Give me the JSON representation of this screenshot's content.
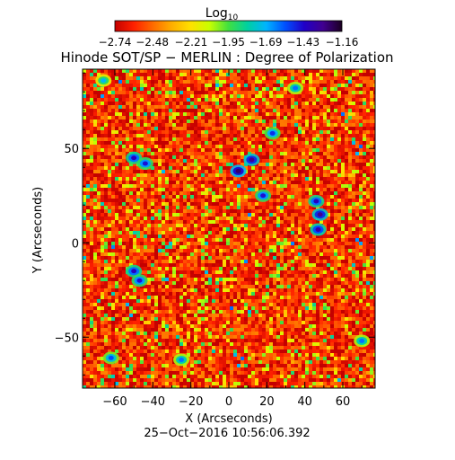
{
  "chart_data": {
    "type": "heatmap",
    "title": "Hinode SOT/SP − MERLIN : Degree of Polarization",
    "xlabel": "X (Arcseconds)",
    "ylabel": "Y (Arcseconds)",
    "timestamp": "25−Oct−2016 10:56:06.392",
    "xlim": [
      -77,
      77
    ],
    "ylim": [
      -77,
      92
    ],
    "x_ticks": [
      -60,
      -40,
      -20,
      0,
      20,
      40,
      60
    ],
    "x_tick_labels": [
      "−60",
      "−40",
      "−20",
      "0",
      "20",
      "40",
      "60"
    ],
    "y_ticks": [
      -50,
      0,
      50
    ],
    "y_tick_labels": [
      "−50",
      "0",
      "50"
    ],
    "colorbar": {
      "title": "Log",
      "title_subscript": "10",
      "min": -2.74,
      "max": -1.16,
      "tick_values": [
        -2.74,
        -2.48,
        -2.21,
        -1.95,
        -1.69,
        -1.43,
        -1.16
      ],
      "tick_labels": [
        "−2.74",
        "−2.48",
        "−2.21",
        "−1.95",
        "−1.69",
        "−1.43",
        "−1.16"
      ],
      "colors": [
        "#c40000",
        "#ff2000",
        "#ff6a00",
        "#ffae00",
        "#ffe000",
        "#c8ff00",
        "#40e040",
        "#00d0a0",
        "#00b4ff",
        "#0050ff",
        "#2000c8",
        "#400090",
        "#1a0020"
      ]
    },
    "background_level": -2.6,
    "patches": [
      {
        "x": 5,
        "y": 38,
        "level": -1.25
      },
      {
        "x": 12,
        "y": 44,
        "level": -1.3
      },
      {
        "x": 48,
        "y": 15,
        "level": -1.3
      },
      {
        "x": 47,
        "y": 7,
        "level": -1.35
      },
      {
        "x": 46,
        "y": 22,
        "level": -1.4
      },
      {
        "x": -50,
        "y": 45,
        "level": -1.4
      },
      {
        "x": -44,
        "y": 42,
        "level": -1.45
      },
      {
        "x": -50,
        "y": -15,
        "level": -1.4
      },
      {
        "x": -47,
        "y": -20,
        "level": -1.45
      },
      {
        "x": 18,
        "y": 25,
        "level": -1.45
      },
      {
        "x": 23,
        "y": 58,
        "level": -1.5
      },
      {
        "x": -62,
        "y": -61,
        "level": -1.55
      },
      {
        "x": -25,
        "y": -62,
        "level": -1.6
      },
      {
        "x": 35,
        "y": 82,
        "level": -1.6
      },
      {
        "x": -66,
        "y": 86,
        "level": -1.7
      },
      {
        "x": 70,
        "y": -52,
        "level": -1.6
      }
    ]
  }
}
